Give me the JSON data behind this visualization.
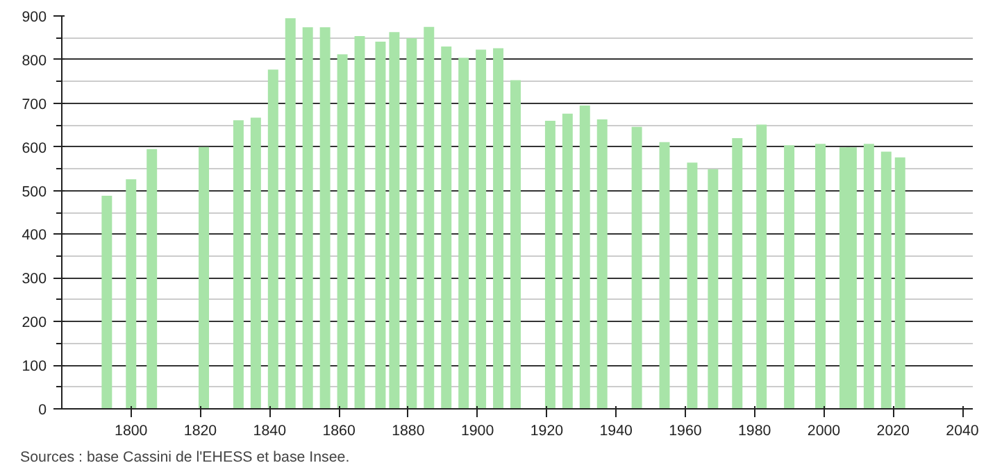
{
  "chart_data": {
    "type": "bar",
    "x": [
      1793,
      1800,
      1806,
      1821,
      1831,
      1836,
      1841,
      1846,
      1851,
      1856,
      1861,
      1866,
      1872,
      1876,
      1881,
      1886,
      1891,
      1896,
      1901,
      1906,
      1911,
      1921,
      1926,
      1931,
      1936,
      1946,
      1954,
      1962,
      1968,
      1975,
      1982,
      1990,
      1999,
      2006,
      2008,
      2013,
      2018,
      2022
    ],
    "values": [
      488,
      526,
      595,
      600,
      661,
      667,
      777,
      895,
      874,
      874,
      812,
      854,
      841,
      863,
      849,
      875,
      830,
      804,
      823,
      826,
      753,
      660,
      676,
      695,
      663,
      646,
      611,
      564,
      549,
      620,
      651,
      604,
      607,
      599,
      599,
      607,
      589,
      576
    ],
    "color": "#a8e4a8",
    "xlim": [
      1780,
      2043
    ],
    "xticks": [
      1800,
      1820,
      1840,
      1860,
      1880,
      1900,
      1920,
      1940,
      1960,
      1980,
      2000,
      2020,
      2040
    ],
    "ylim": [
      0,
      900
    ],
    "yticks": [
      0,
      100,
      200,
      300,
      400,
      500,
      600,
      700,
      800,
      900
    ],
    "grid": "y",
    "annotations": [
      "Sources : base Cassini de l'EHESS et base Insee."
    ]
  }
}
